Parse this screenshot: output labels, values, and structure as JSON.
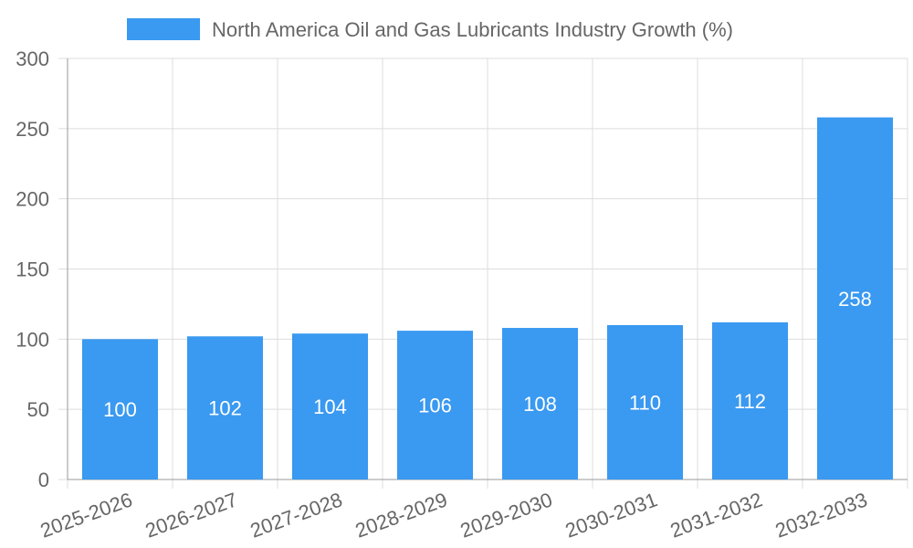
{
  "chart_data": {
    "type": "bar",
    "title": "",
    "xlabel": "",
    "ylabel": "",
    "ylim": [
      0,
      300
    ],
    "yticks": [
      0,
      50,
      100,
      150,
      200,
      250,
      300
    ],
    "grid": true,
    "legend_position": "top-center",
    "categories": [
      "2025-2026",
      "2026-2027",
      "2027-2028",
      "2028-2029",
      "2029-2030",
      "2030-2031",
      "2031-2032",
      "2032-2033"
    ],
    "series": [
      {
        "name": "North America Oil and Gas Lubricants Industry Growth (%)",
        "values": [
          100,
          102,
          104,
          106,
          108,
          110,
          112,
          258
        ],
        "color": "#3a99f0"
      }
    ]
  },
  "colors": {
    "grid": "#dddddd",
    "axis": "#999999",
    "text": "#666666",
    "bar_label": "#ffffff"
  }
}
